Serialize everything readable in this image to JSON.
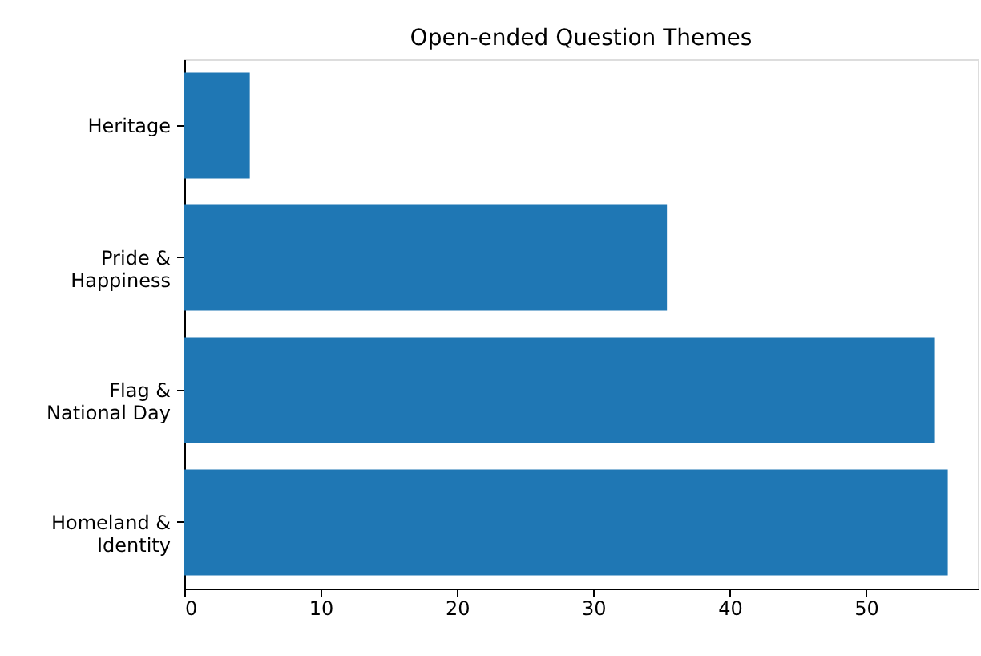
{
  "chart_data": {
    "type": "bar",
    "title": "Open-ended Question Themes",
    "orientation": "horizontal",
    "categories": [
      "Heritage",
      "Pride &\nHappiness",
      "Flag &\nNational Day",
      "Homeland &\nIdentity"
    ],
    "values": [
      4.8,
      35.4,
      55,
      56
    ],
    "color": "#1f77b4",
    "xlim": [
      0,
      58.2
    ],
    "xticks": [
      0,
      10,
      20,
      30,
      40,
      50
    ],
    "grid": false
  }
}
